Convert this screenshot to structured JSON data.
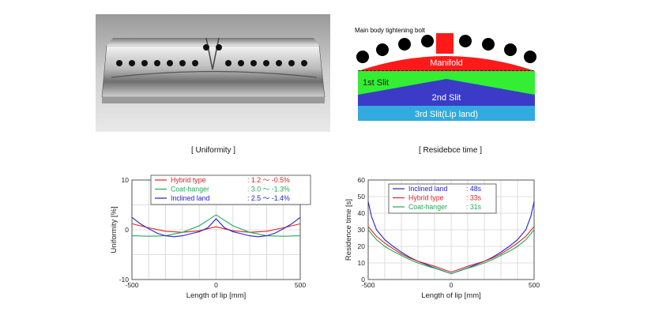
{
  "captions": {
    "uniformity": "[ Uniformity ]",
    "residence": "[ Residebce time ]"
  },
  "die_diagram": {
    "bolt_label": "Main body tightening bolt",
    "manifold": "Manifold",
    "slit1": "1st Slit",
    "slit2": "2nd Slit",
    "slit3": "3rd Slit(Lip land)",
    "colors": {
      "manifold": "#ff1a1a",
      "slit1": "#33ee33",
      "slit2": "#3b3bc8",
      "slit3": "#33aadd",
      "bolt": "#000000"
    }
  },
  "chart_data": [
    {
      "type": "line",
      "title": "",
      "xlabel": "Length of lip [mm]",
      "ylabel": "Uniformity [%]",
      "xlim": [
        -500,
        500
      ],
      "ylim": [
        -10,
        10
      ],
      "xticks": [
        "-500",
        "0",
        "500"
      ],
      "yticks": [
        "10",
        "0",
        "-10"
      ],
      "grid": true,
      "legend_position": "top-right",
      "series": [
        {
          "name": "Hybrid type",
          "value_label": ": 1.2 ～ -0.5%",
          "color": "#dd2222",
          "x": [
            -500,
            -400,
            -300,
            -200,
            -100,
            0,
            100,
            200,
            300,
            400,
            500
          ],
          "y": [
            1.2,
            0.4,
            -0.3,
            -0.5,
            -0.2,
            0.6,
            -0.2,
            -0.5,
            -0.3,
            0.4,
            1.2
          ]
        },
        {
          "name": "Coat-hanger",
          "value_label": ": 3.0 ～ -1.3%",
          "color": "#22aa55",
          "x": [
            -500,
            -400,
            -300,
            -200,
            -100,
            0,
            100,
            200,
            300,
            400,
            500
          ],
          "y": [
            -1.2,
            -1.3,
            -1.2,
            -0.5,
            0.8,
            3.0,
            0.8,
            -0.5,
            -1.2,
            -1.3,
            -1.2
          ]
        },
        {
          "name": "Inclined land",
          "value_label": ": 2.5 ～ -1.4%",
          "color": "#2222cc",
          "x": [
            -500,
            -450,
            -400,
            -350,
            -300,
            -250,
            -200,
            -150,
            -100,
            -50,
            0,
            50,
            100,
            150,
            200,
            250,
            300,
            350,
            400,
            450,
            500
          ],
          "y": [
            2.5,
            1.2,
            0.2,
            -0.7,
            -1.2,
            -1.4,
            -1.2,
            -0.8,
            -0.4,
            0.4,
            2.2,
            0.4,
            -0.4,
            -0.8,
            -1.2,
            -1.4,
            -1.2,
            -0.7,
            0.2,
            1.2,
            2.5
          ]
        }
      ]
    },
    {
      "type": "line",
      "title": "",
      "xlabel": "Length of lip [mm]",
      "ylabel": "Residence time [s]",
      "xlim": [
        -500,
        500
      ],
      "ylim": [
        0,
        60
      ],
      "xticks": [
        "-500",
        "0",
        "500"
      ],
      "yticks": [
        "60",
        "50",
        "40",
        "30",
        "20",
        "10",
        "0"
      ],
      "grid": true,
      "legend_position": "top-left",
      "series": [
        {
          "name": "Inclined land",
          "value_label": ":  48s",
          "color": "#2222cc",
          "x": [
            -500,
            -480,
            -450,
            -400,
            -350,
            -300,
            -250,
            -200,
            -150,
            -100,
            -50,
            0,
            50,
            100,
            150,
            200,
            250,
            300,
            350,
            400,
            450,
            480,
            500
          ],
          "y": [
            47,
            38,
            30,
            24,
            20,
            16.5,
            13.5,
            11,
            9,
            7,
            5.3,
            3.5,
            5.3,
            7,
            9,
            11,
            13.5,
            16.5,
            20,
            24,
            30,
            38,
            47
          ]
        },
        {
          "name": "Hybrid type",
          "value_label": ":  33s",
          "color": "#dd2222",
          "x": [
            -500,
            -450,
            -400,
            -350,
            -300,
            -250,
            -200,
            -150,
            -100,
            -50,
            0,
            50,
            100,
            150,
            200,
            250,
            300,
            350,
            400,
            450,
            500
          ],
          "y": [
            32,
            26,
            22,
            18.5,
            15.5,
            13,
            11,
            9.5,
            8,
            6.2,
            4.5,
            6.2,
            8,
            9.5,
            11,
            13,
            15.5,
            18.5,
            22,
            26,
            32
          ]
        },
        {
          "name": "Coat-hanger",
          "value_label": ":  31s",
          "color": "#22aa55",
          "x": [
            -500,
            -450,
            -400,
            -350,
            -300,
            -250,
            -200,
            -150,
            -100,
            -50,
            0,
            50,
            100,
            150,
            200,
            250,
            300,
            350,
            400,
            450,
            500
          ],
          "y": [
            30,
            24,
            20,
            17,
            14.5,
            12,
            10,
            8.3,
            6.8,
            5.2,
            3.5,
            5.2,
            6.8,
            8.3,
            10,
            12,
            14.5,
            17,
            20,
            24,
            30
          ]
        }
      ]
    }
  ]
}
